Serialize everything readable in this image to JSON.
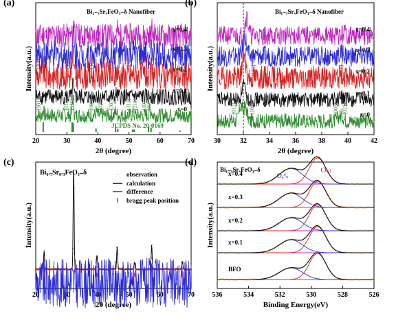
{
  "chart_data": [
    {
      "type": "line",
      "panel_label": "(a)",
      "title": "Bi₁₋ₓSrₓFeO₃₋δ Nanofiber",
      "xlabel": "2θ (degree)",
      "ylabel": "Intensity(a.u.)",
      "xlim": [
        20,
        70
      ],
      "x_ticks": [
        "20",
        "30",
        "40",
        "50",
        "60",
        "70"
      ],
      "series": [
        {
          "name": "x=0",
          "color": "#2e8b2e",
          "peaks": [
            {
              "x": 22.4,
              "h": 0.55
            },
            {
              "x": 31.8,
              "h": 1.0
            },
            {
              "x": 32.1,
              "h": 0.95
            },
            {
              "x": 39.5,
              "h": 0.35
            },
            {
              "x": 45.8,
              "h": 0.4
            },
            {
              "x": 51.3,
              "h": 0.25
            },
            {
              "x": 56.5,
              "h": 0.45
            },
            {
              "x": 57.2,
              "h": 0.4
            }
          ]
        },
        {
          "name": "x=0.1",
          "color": "#111111",
          "peaks": [
            {
              "x": 22.5,
              "h": 0.25
            },
            {
              "x": 32.0,
              "h": 1.0
            },
            {
              "x": 39.5,
              "h": 0.2
            },
            {
              "x": 46.0,
              "h": 0.25
            },
            {
              "x": 51.5,
              "h": 0.12
            },
            {
              "x": 57.0,
              "h": 0.3
            }
          ]
        },
        {
          "name": "x=0.2",
          "color": "#d62020",
          "peaks": [
            {
              "x": 22.6,
              "h": 0.25
            },
            {
              "x": 32.1,
              "h": 1.0
            },
            {
              "x": 39.6,
              "h": 0.2
            },
            {
              "x": 46.1,
              "h": 0.25
            },
            {
              "x": 51.6,
              "h": 0.12
            },
            {
              "x": 57.2,
              "h": 0.3
            }
          ]
        },
        {
          "name": "x=0.3",
          "color": "#2b2bd6",
          "peaks": [
            {
              "x": 22.7,
              "h": 0.25
            },
            {
              "x": 32.2,
              "h": 1.0
            },
            {
              "x": 39.7,
              "h": 0.2
            },
            {
              "x": 46.2,
              "h": 0.25
            },
            {
              "x": 51.7,
              "h": 0.12
            },
            {
              "x": 57.3,
              "h": 0.3
            }
          ]
        },
        {
          "name": "x=0.4",
          "color": "#c026c0",
          "peaks": [
            {
              "x": 22.8,
              "h": 0.25
            },
            {
              "x": 32.3,
              "h": 1.0
            },
            {
              "x": 39.8,
              "h": 0.2
            },
            {
              "x": 46.3,
              "h": 0.25
            },
            {
              "x": 51.8,
              "h": 0.12
            },
            {
              "x": 57.4,
              "h": 0.3
            }
          ]
        }
      ],
      "reference": {
        "name": "JCPDS No. 20-0169",
        "color": "#2e8b2e",
        "lines": [
          {
            "x": 22.4,
            "h": 1.0
          },
          {
            "x": 31.7,
            "h": 1.0
          },
          {
            "x": 32.1,
            "h": 0.9
          },
          {
            "x": 39.4,
            "h": 0.35
          },
          {
            "x": 45.7,
            "h": 0.5
          },
          {
            "x": 46.4,
            "h": 0.3
          },
          {
            "x": 51.2,
            "h": 0.25
          },
          {
            "x": 51.7,
            "h": 0.25
          },
          {
            "x": 56.3,
            "h": 0.5
          },
          {
            "x": 57.1,
            "h": 0.45
          },
          {
            "x": 66.4,
            "h": 0.15
          }
        ]
      },
      "annotations_red": [
        "(100)",
        "(110)",
        "(111)",
        "(200)",
        "(210)",
        "(211)"
      ],
      "annotations_green": [
        "(101)",
        "(012)",
        "(110)",
        "(003)",
        "(021)",
        "(202)",
        "(113)",
        "(211)",
        "(104)",
        "(122)"
      ]
    },
    {
      "type": "line",
      "panel_label": "(b)",
      "title": "Bi₁₋ₓSrₓFeO₃₋δ Nanofiber",
      "xlabel": "2θ (degree)",
      "ylabel": "Intensity(a.u.)",
      "xlim": [
        30,
        42
      ],
      "x_ticks": [
        "30",
        "32",
        "34",
        "36",
        "38",
        "40",
        "42"
      ],
      "reference_line_x": 32,
      "series": [
        {
          "name": "x=0",
          "color": "#2e8b2e",
          "peaks": [
            {
              "x": 31.8,
              "h": 1.0
            },
            {
              "x": 32.15,
              "h": 0.9
            },
            {
              "x": 39.35,
              "h": 0.3
            },
            {
              "x": 39.6,
              "h": 0.25
            }
          ]
        },
        {
          "name": "x=0.1",
          "color": "#111111",
          "peaks": [
            {
              "x": 32.0,
              "h": 1.0
            },
            {
              "x": 39.5,
              "h": 0.18
            }
          ]
        },
        {
          "name": "x=0.2",
          "color": "#d62020",
          "peaks": [
            {
              "x": 32.05,
              "h": 1.0
            },
            {
              "x": 39.55,
              "h": 0.18
            }
          ]
        },
        {
          "name": "x=0.3",
          "color": "#2b2bd6",
          "peaks": [
            {
              "x": 32.1,
              "h": 1.0
            },
            {
              "x": 39.6,
              "h": 0.18
            }
          ]
        },
        {
          "name": "x=0.4",
          "color": "#c026c0",
          "peaks": [
            {
              "x": 32.25,
              "h": 1.0
            },
            {
              "x": 39.75,
              "h": 0.18
            }
          ]
        }
      ],
      "annotations_red": [
        "(110)",
        "(111)"
      ],
      "annotations_green": [
        "(012)",
        "(101)",
        "(003)",
        "(021)"
      ]
    },
    {
      "type": "line",
      "panel_label": "(c)",
      "title": "Bi₀.₇Sr₀.₃FeO₃₋δ",
      "xlabel": "2θ (degree)",
      "ylabel": "Intensity(a.u.)",
      "xlim": [
        20,
        70
      ],
      "x_ticks": [
        "20",
        "30",
        "40",
        "50",
        "60",
        "70"
      ],
      "legend": [
        "observation",
        "calculation",
        "difference",
        "bragg peak position"
      ],
      "legend_colors": [
        "#d62020",
        "#111111",
        "#2b2bd6",
        "#c026c0"
      ],
      "peaks": [
        {
          "x": 22.7,
          "h": 0.18
        },
        {
          "x": 32.2,
          "h": 1.0
        },
        {
          "x": 39.7,
          "h": 0.14
        },
        {
          "x": 46.2,
          "h": 0.22
        },
        {
          "x": 51.8,
          "h": 0.07
        },
        {
          "x": 57.3,
          "h": 0.24
        },
        {
          "x": 67.2,
          "h": 0.08
        }
      ],
      "bragg_positions": [
        22.7,
        32.2,
        39.7,
        46.2,
        51.8,
        57.3,
        67.2
      ]
    },
    {
      "type": "line",
      "panel_label": "(d)",
      "title": "Bi₁₋ₓSrₓFeO₃₋δ",
      "xlabel": "Binding Energy(eV)",
      "ylabel": "Intensity(a.u.)",
      "xlim": [
        536,
        526
      ],
      "x_ticks": [
        "536",
        "534",
        "532",
        "530",
        "528",
        "526"
      ],
      "annotations": [
        "Oₐᵈₛ",
        "Oₗₐₜ"
      ],
      "series": [
        {
          "name": "BFO",
          "lat_center": 529.6,
          "lat_h": 1.0,
          "ads_center": 531.3,
          "ads_h": 0.45
        },
        {
          "name": "x=0.1",
          "lat_center": 529.6,
          "lat_h": 1.0,
          "ads_center": 531.3,
          "ads_h": 0.5
        },
        {
          "name": "x=0.2",
          "lat_center": 529.6,
          "lat_h": 1.0,
          "ads_center": 531.3,
          "ads_h": 0.5
        },
        {
          "name": "x=0.3",
          "lat_center": 529.6,
          "lat_h": 1.0,
          "ads_center": 531.3,
          "ads_h": 0.55
        },
        {
          "name": "x=0.4",
          "lat_center": 529.6,
          "lat_h": 1.0,
          "ads_center": 531.3,
          "ads_h": 0.6
        }
      ],
      "component_colors": {
        "oxygen_lattice": "#d62020",
        "oxygen_adsorbed": "#2b2bd6",
        "envelope": "#111111",
        "baseline": "#c026c0",
        "data": "#e0b060"
      }
    }
  ]
}
